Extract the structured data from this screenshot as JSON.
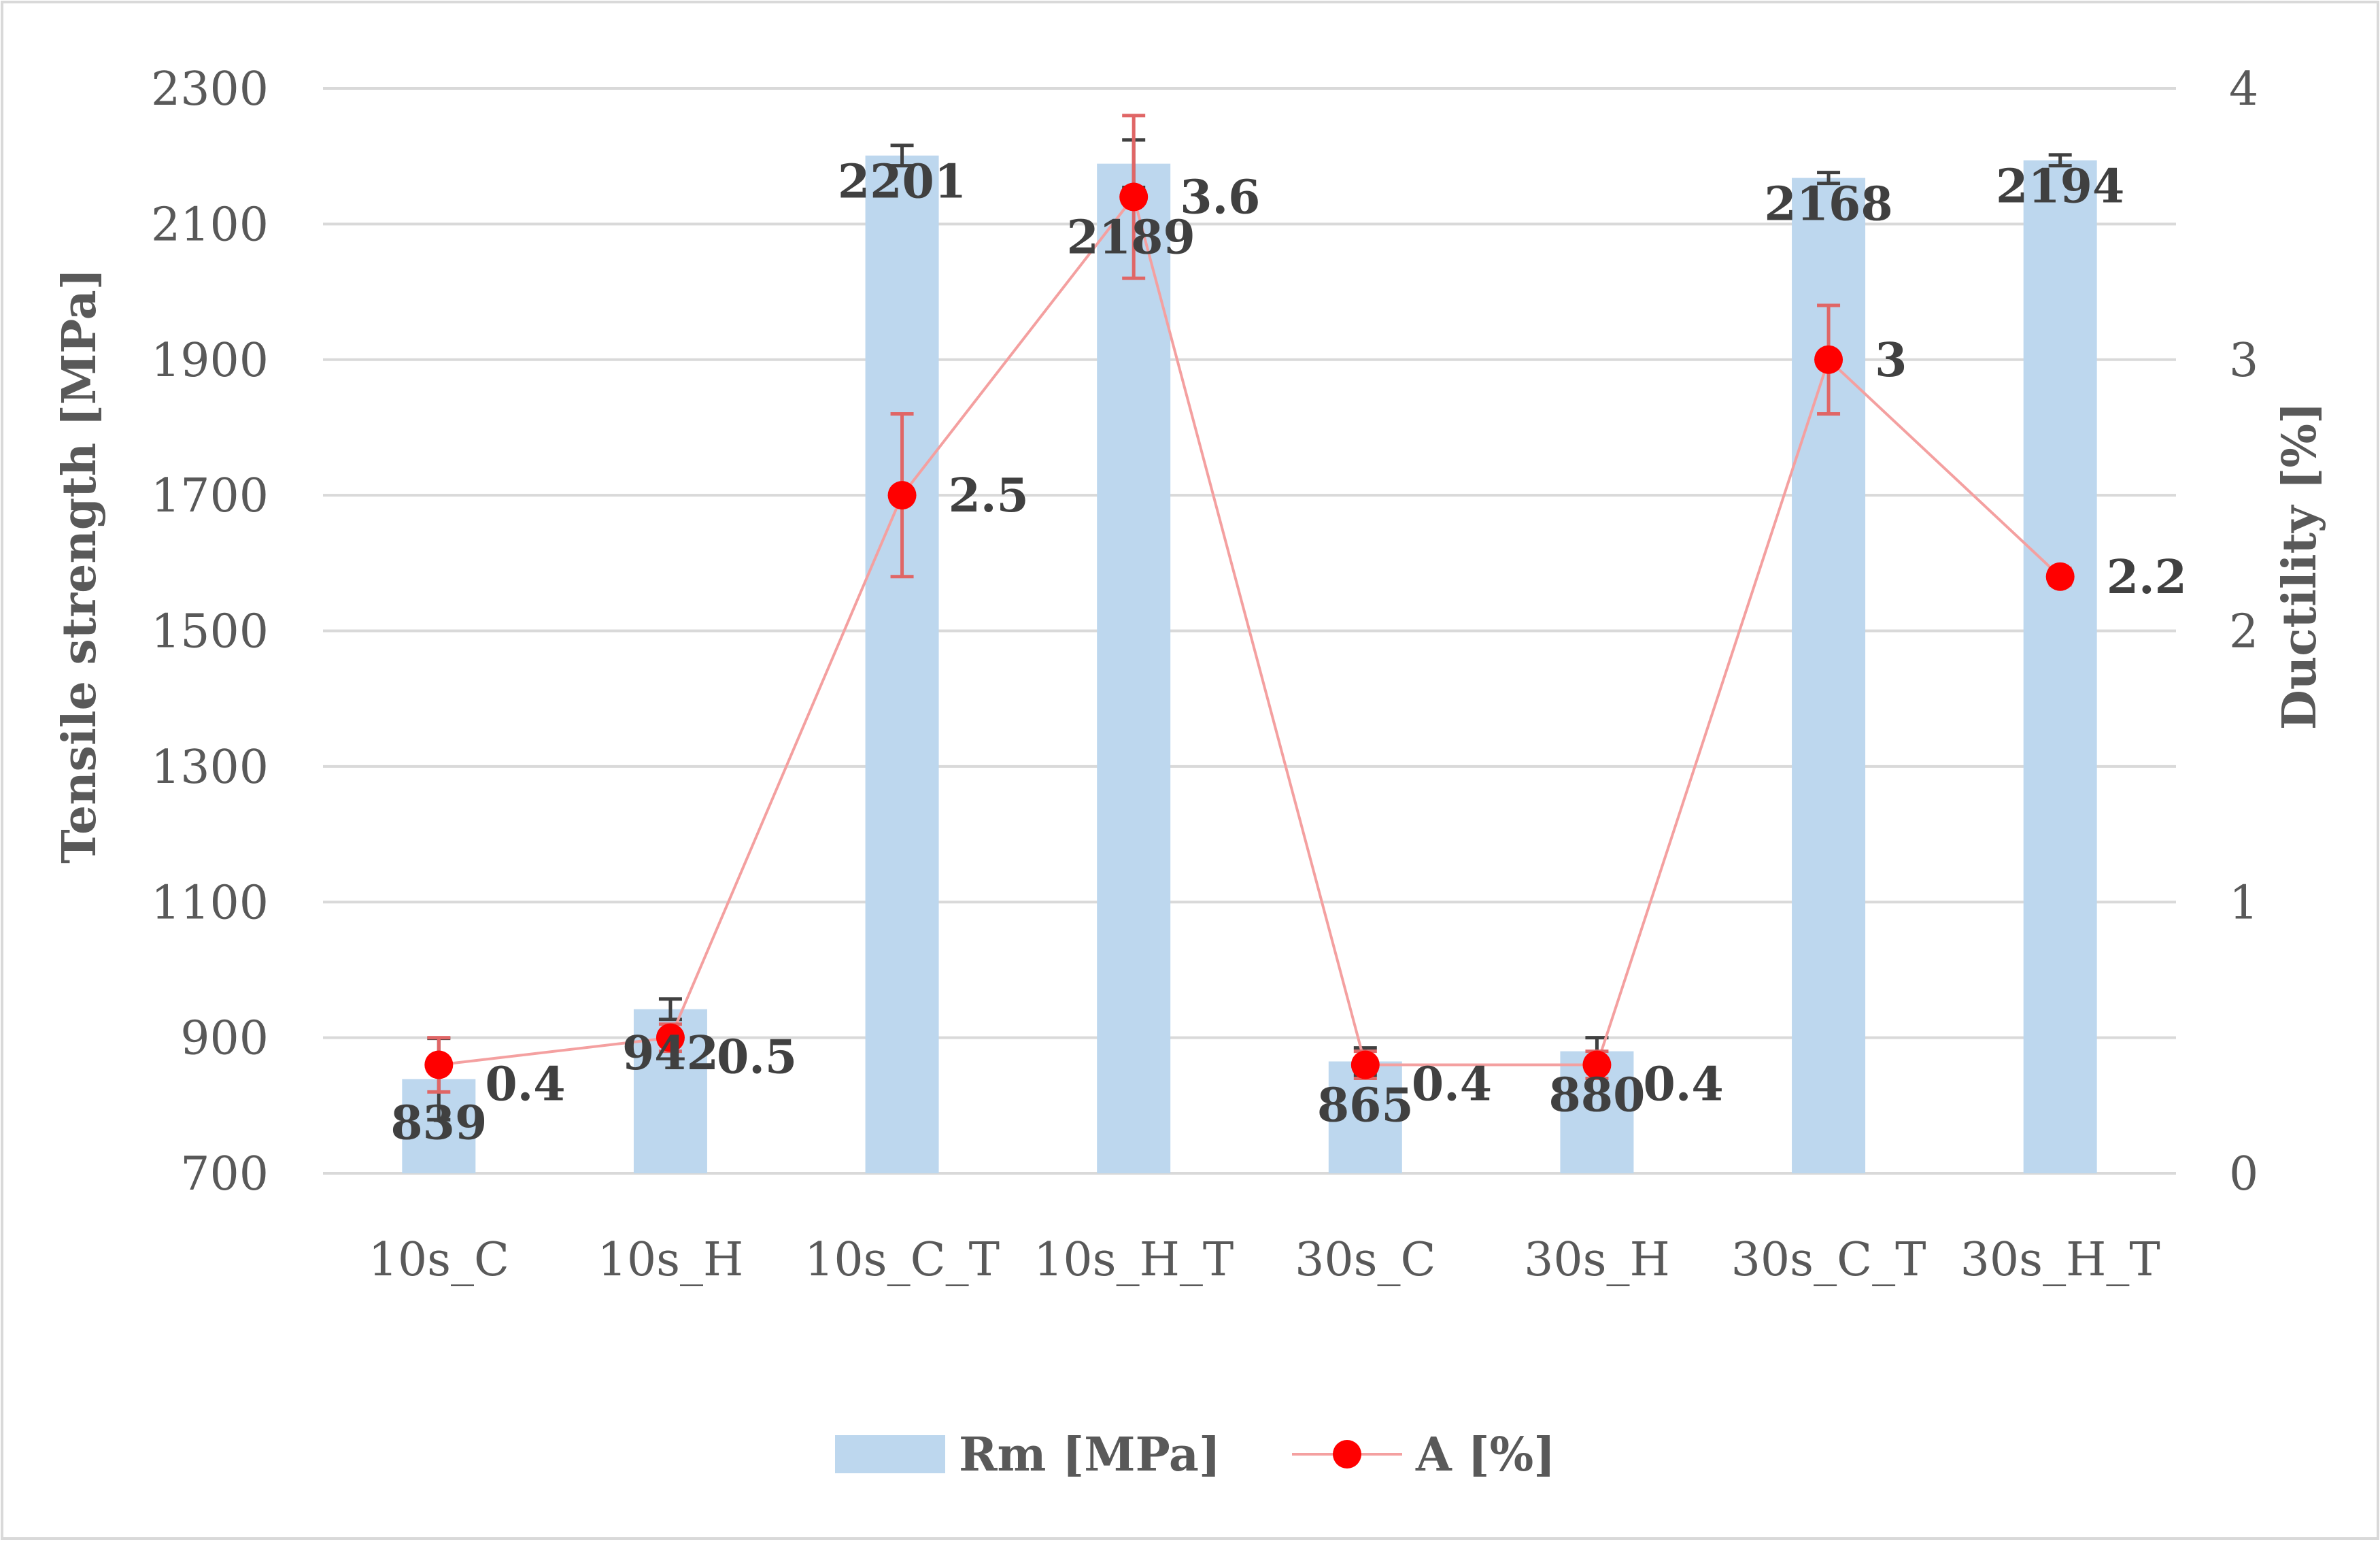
{
  "chart_data": {
    "type": "bar+line",
    "title": "",
    "categories": [
      "10s_C",
      "10s_H",
      "10s_C_T",
      "10s_H_T",
      "30s_C",
      "30s_H",
      "30s_C_T",
      "30s_H_T"
    ],
    "series": [
      {
        "name": "Rm [MPa]",
        "type": "bar",
        "axis": "left",
        "values": [
          839,
          942,
          2201,
          2189,
          865,
          880,
          2168,
          2194
        ],
        "value_labels": [
          "839",
          "942",
          "2201",
          "2189",
          "865",
          "880",
          "2168",
          "2194"
        ],
        "error": [
          60,
          15,
          15,
          35,
          20,
          20,
          8,
          8
        ],
        "color": "#bdd7ee",
        "error_color": "#404040"
      },
      {
        "name": "A [%]",
        "type": "line",
        "axis": "right",
        "values": [
          0.4,
          0.5,
          2.5,
          3.6,
          0.4,
          0.4,
          3,
          2.2
        ],
        "value_labels": [
          "0.4",
          "0.5",
          "2.5",
          "3.6",
          "0.4",
          "0.4",
          "3",
          "2.2"
        ],
        "error": [
          0.1,
          0.05,
          0.3,
          0.3,
          0.05,
          0.05,
          0.2,
          0.03
        ],
        "color": "#ff0000",
        "line_color": "#f4a0a0",
        "error_color": "#e06666"
      }
    ],
    "ylabel": "Tensile strength [MPa]",
    "ylabel_right": "Ductility [%]",
    "ylim": [
      700,
      2300
    ],
    "yticks": [
      "700",
      "900",
      "1100",
      "1300",
      "1500",
      "1700",
      "1900",
      "2100",
      "2300"
    ],
    "ylim_right": [
      0,
      4
    ],
    "yticks_right": [
      "0",
      "1",
      "2",
      "3",
      "4"
    ],
    "grid": true,
    "legend": "bottom",
    "colors": {
      "grid": "#d9d9d9",
      "frame": "#d9d9d9",
      "text": "#595959"
    }
  }
}
